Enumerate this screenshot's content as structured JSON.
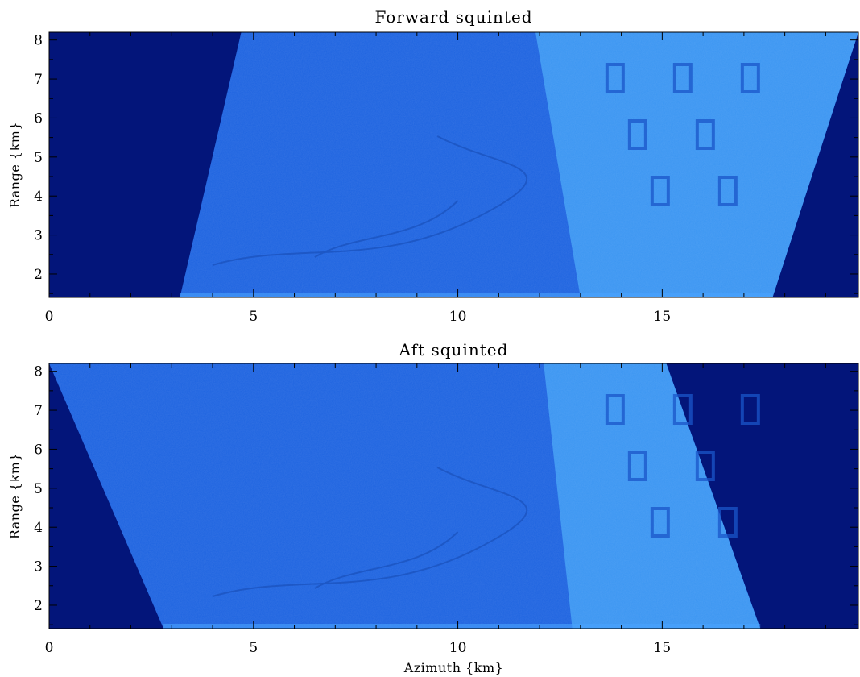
{
  "chart_data": [
    {
      "type": "heatmap",
      "title": "Forward squinted",
      "xlabel": "",
      "ylabel": "Range {km}",
      "xlim": [
        0,
        19.8
      ],
      "ylim": [
        1.4,
        8.2
      ],
      "xticks": [
        0,
        5,
        10,
        15
      ],
      "yticks": [
        2,
        3,
        4,
        5,
        6,
        7,
        8
      ],
      "xtick_labels": [
        "0",
        "5",
        "10",
        "15"
      ],
      "ytick_labels": [
        "2",
        "3",
        "4",
        "5",
        "6",
        "7",
        "8"
      ],
      "swath": {
        "top_azimuth_start": 4.7,
        "top_azimuth_end": 19.8,
        "bottom_azimuth_start": 3.2,
        "bottom_azimuth_end": 17.7
      },
      "land_boundary": {
        "top_azimuth": 11.9,
        "bottom_azimuth": 13.0
      },
      "colors": {
        "background": "#03157a",
        "water": "#1d63e0",
        "land": "#3a95f2"
      }
    },
    {
      "type": "heatmap",
      "title": "Aft squinted",
      "xlabel": "Azimuth {km}",
      "ylabel": "Range {km}",
      "xlim": [
        0,
        19.8
      ],
      "ylim": [
        1.4,
        8.2
      ],
      "xticks": [
        0,
        5,
        10,
        15
      ],
      "yticks": [
        2,
        3,
        4,
        5,
        6,
        7,
        8
      ],
      "xtick_labels": [
        "0",
        "5",
        "10",
        "15"
      ],
      "ytick_labels": [
        "2",
        "3",
        "4",
        "5",
        "6",
        "7",
        "8"
      ],
      "swath": {
        "top_azimuth_start": 0.0,
        "top_azimuth_end": 15.1,
        "bottom_azimuth_start": 2.8,
        "bottom_azimuth_end": 17.4
      },
      "land_boundary": {
        "top_azimuth": 12.1,
        "bottom_azimuth": 12.8
      },
      "colors": {
        "background": "#03157a",
        "water": "#1d63e0",
        "land": "#3a95f2"
      }
    }
  ]
}
